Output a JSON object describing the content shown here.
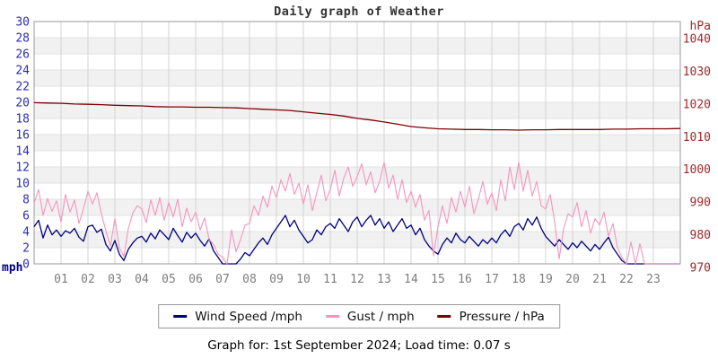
{
  "title": "Daily graph of Weather",
  "footer": "Graph for: 1st September 2024; Load time: 0.07 s",
  "legend": {
    "items": [
      {
        "label": "Wind Speed /mph",
        "color": "#000080"
      },
      {
        "label": "Gust / mph",
        "color": "#f794bd"
      },
      {
        "label": "Pressure / hPa",
        "color": "#7f0000"
      }
    ]
  },
  "colors": {
    "page_bg": "#ffffff",
    "band_gray": "#f1f1f1",
    "grid_vertical": "#d4d4d4",
    "grid_horizontal": "#e2e2e2",
    "plot_border": "#999999",
    "left_tick_text": "#2b2bb8",
    "left_unit_text": "#00008b",
    "right_tick_text": "#a02828",
    "x_tick_text": "#7d7d7d",
    "title_text": "#333333",
    "wind": "#000080",
    "gust": "#f794bd",
    "pressure": "#7f0000"
  },
  "chart_data": {
    "type": "line",
    "title": "Daily graph of Weather",
    "x_unit": "hours",
    "x_range": [
      0,
      24
    ],
    "x_ticks": [
      "01",
      "02",
      "03",
      "04",
      "05",
      "06",
      "07",
      "08",
      "09",
      "10",
      "11",
      "12",
      "13",
      "14",
      "15",
      "16",
      "17",
      "18",
      "19",
      "20",
      "21",
      "22",
      "23"
    ],
    "left_axis": {
      "label": "mph",
      "min": 0,
      "max": 30,
      "ticks": [
        0,
        2,
        4,
        6,
        8,
        10,
        12,
        14,
        16,
        18,
        20,
        22,
        24,
        26,
        28,
        30
      ]
    },
    "right_axis": {
      "label": "hPa",
      "min": 970,
      "max": 1044,
      "ticks": [
        970,
        980,
        990,
        1000,
        1010,
        1020,
        1030,
        1040
      ]
    },
    "grid": true,
    "legend_position": "bottom",
    "series": [
      {
        "name": "Wind Speed /mph",
        "axis": "left",
        "color": "#000080",
        "width": 1.3,
        "interval_min": 10,
        "values": [
          4.6,
          5.4,
          3.2,
          4.8,
          3.6,
          4.2,
          3.4,
          4.1,
          3.8,
          4.4,
          3.3,
          2.8,
          4.6,
          4.8,
          3.9,
          4.3,
          2.4,
          1.6,
          2.9,
          1.2,
          0.4,
          1.8,
          2.6,
          3.2,
          3.4,
          2.7,
          3.8,
          3.1,
          4.2,
          3.6,
          3.0,
          4.4,
          3.5,
          2.7,
          3.9,
          3.2,
          3.8,
          2.9,
          2.2,
          3.1,
          1.6,
          0.8,
          0.0,
          0.0,
          0.0,
          0.0,
          0.6,
          1.4,
          1.0,
          1.8,
          2.6,
          3.2,
          2.4,
          3.6,
          4.4,
          5.2,
          6.0,
          4.6,
          5.4,
          4.2,
          3.4,
          2.6,
          3.0,
          4.2,
          3.6,
          4.6,
          5.0,
          4.4,
          5.6,
          4.8,
          4.0,
          5.2,
          5.8,
          4.6,
          5.4,
          6.0,
          4.8,
          5.6,
          4.4,
          5.2,
          4.0,
          4.8,
          5.6,
          4.4,
          4.8,
          3.6,
          4.4,
          3.0,
          2.2,
          1.6,
          1.2,
          2.4,
          3.2,
          2.6,
          3.8,
          3.0,
          2.6,
          3.4,
          2.8,
          2.2,
          3.0,
          2.5,
          3.2,
          2.6,
          3.6,
          4.2,
          3.4,
          4.6,
          5.0,
          4.2,
          5.6,
          4.8,
          5.8,
          4.4,
          3.4,
          2.8,
          2.2,
          3.0,
          2.4,
          1.8,
          2.6,
          2.0,
          2.8,
          2.2,
          1.6,
          2.4,
          1.8,
          2.6,
          3.3,
          2.0,
          1.2,
          0.4,
          0.0,
          0.0,
          0.0,
          0.0,
          0.0,
          0.0,
          0.0,
          0.0,
          0.0,
          0.0,
          0.0,
          0.0,
          0.0
        ]
      },
      {
        "name": "Gust / mph",
        "axis": "left",
        "color": "#f794bd",
        "width": 1.1,
        "interval_min": 10,
        "values": [
          7.5,
          9.2,
          6.0,
          8.1,
          6.5,
          7.8,
          5.2,
          8.6,
          6.4,
          7.9,
          5.0,
          6.8,
          9.0,
          7.4,
          8.8,
          6.2,
          4.1,
          2.2,
          5.6,
          2.0,
          0.9,
          4.4,
          6.3,
          7.2,
          6.8,
          5.1,
          7.9,
          6.0,
          8.2,
          5.4,
          7.6,
          5.8,
          8.0,
          4.6,
          6.9,
          5.2,
          6.4,
          4.2,
          5.7,
          3.0,
          2.4,
          1.2,
          0.8,
          0.0,
          4.2,
          1.5,
          3.0,
          4.8,
          5.0,
          7.2,
          6.0,
          8.4,
          7.0,
          9.6,
          8.2,
          10.4,
          9.0,
          11.2,
          8.6,
          10.0,
          7.4,
          9.8,
          6.6,
          8.8,
          11.0,
          7.8,
          9.2,
          11.6,
          8.4,
          10.6,
          12.0,
          9.6,
          10.8,
          12.4,
          9.8,
          11.4,
          8.8,
          10.2,
          12.6,
          9.4,
          11.0,
          8.0,
          10.4,
          7.6,
          9.0,
          7.0,
          8.6,
          5.4,
          6.6,
          1.0,
          4.6,
          7.2,
          5.0,
          8.2,
          6.4,
          9.0,
          7.0,
          9.6,
          6.2,
          8.0,
          10.2,
          7.4,
          8.8,
          6.6,
          10.4,
          7.8,
          12.0,
          9.2,
          12.6,
          9.0,
          11.6,
          8.4,
          10.2,
          7.2,
          6.8,
          8.6,
          5.2,
          0.6,
          4.4,
          6.2,
          5.8,
          7.6,
          4.6,
          6.6,
          3.8,
          5.6,
          4.8,
          6.4,
          3.4,
          5.0,
          2.0,
          0.8,
          0.0,
          2.7,
          0.0,
          2.5,
          0.0,
          0.0,
          0.0,
          0.0,
          0.0,
          0.0,
          0.0,
          0.0,
          0.0
        ]
      },
      {
        "name": "Pressure / hPa",
        "axis": "right",
        "color": "#7f0000",
        "width": 1.3,
        "interval_min": 30,
        "values": [
          1020.4,
          1020.3,
          1020.2,
          1020.0,
          1019.9,
          1019.8,
          1019.6,
          1019.5,
          1019.4,
          1019.2,
          1019.1,
          1019.1,
          1019.0,
          1019.0,
          1018.9,
          1018.8,
          1018.6,
          1018.4,
          1018.2,
          1018.0,
          1017.6,
          1017.2,
          1016.8,
          1016.3,
          1015.6,
          1015.1,
          1014.5,
          1013.8,
          1013.1,
          1012.7,
          1012.4,
          1012.3,
          1012.2,
          1012.2,
          1012.1,
          1012.1,
          1012.0,
          1012.1,
          1012.1,
          1012.2,
          1012.2,
          1012.2,
          1012.2,
          1012.3,
          1012.3,
          1012.4,
          1012.4,
          1012.4,
          1012.5
        ]
      }
    ]
  }
}
